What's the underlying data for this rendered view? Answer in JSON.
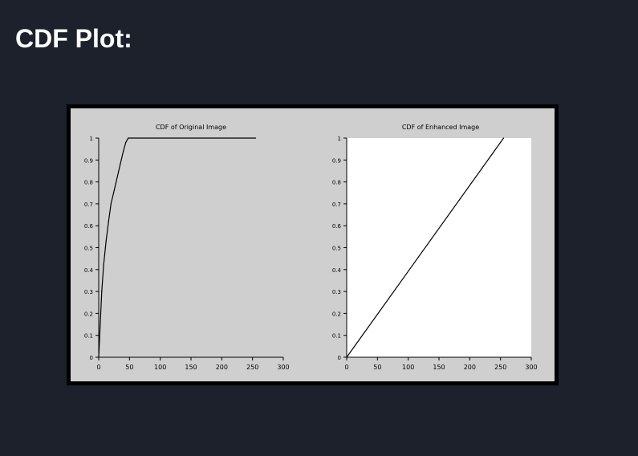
{
  "page": {
    "heading": "CDF Plot:"
  },
  "chart_data": [
    {
      "type": "line",
      "title": "CDF of Original Image",
      "xlim": [
        0,
        300
      ],
      "ylim": [
        0,
        1
      ],
      "x_ticks": [
        0,
        50,
        100,
        150,
        200,
        250,
        300
      ],
      "y_ticks": [
        0,
        0.1,
        0.2,
        0.3,
        0.4,
        0.5,
        0.6,
        0.7,
        0.8,
        0.9,
        1
      ],
      "plot_background": "#cfcfcf",
      "series": [
        {
          "x": [
            0,
            2,
            5,
            8,
            12,
            16,
            20,
            25,
            30,
            35,
            40,
            44,
            48,
            255
          ],
          "y": [
            0,
            0.12,
            0.3,
            0.42,
            0.53,
            0.62,
            0.7,
            0.76,
            0.82,
            0.88,
            0.94,
            0.98,
            1,
            1
          ]
        }
      ]
    },
    {
      "type": "line",
      "title": "CDF of Enhanced Image",
      "xlim": [
        0,
        300
      ],
      "ylim": [
        0,
        1
      ],
      "x_ticks": [
        0,
        50,
        100,
        150,
        200,
        250,
        300
      ],
      "y_ticks": [
        0,
        0.1,
        0.2,
        0.3,
        0.4,
        0.5,
        0.6,
        0.7,
        0.8,
        0.9,
        1
      ],
      "plot_background": "#ffffff",
      "series": [
        {
          "x": [
            0,
            255
          ],
          "y": [
            0,
            1
          ]
        }
      ]
    }
  ]
}
